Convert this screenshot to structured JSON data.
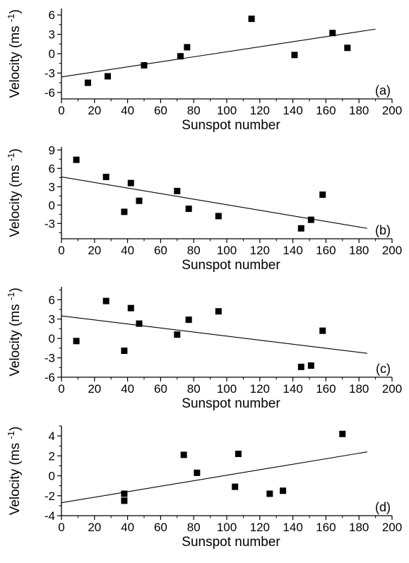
{
  "chart_data": [
    {
      "type": "scatter",
      "panel_label": "(a)",
      "xlabel": "Sunspot number",
      "ylabel": "Velocity (ms -1)",
      "xlim": [
        0,
        200
      ],
      "ylim": [
        -7,
        7
      ],
      "xticks": [
        "0",
        "20",
        "40",
        "60",
        "80",
        "100",
        "120",
        "140",
        "160",
        "180",
        "200"
      ],
      "yticks": [
        "-6",
        "-3",
        "0",
        "3",
        "6"
      ],
      "points": [
        {
          "x": 16,
          "y": -4.5
        },
        {
          "x": 28,
          "y": -3.5
        },
        {
          "x": 50,
          "y": -1.8
        },
        {
          "x": 72,
          "y": -0.4
        },
        {
          "x": 76,
          "y": 1.0
        },
        {
          "x": 115,
          "y": 5.4
        },
        {
          "x": 141,
          "y": -0.2
        },
        {
          "x": 164,
          "y": 3.2
        },
        {
          "x": 173,
          "y": 0.9
        }
      ],
      "fit": {
        "x": [
          0,
          190
        ],
        "y": [
          -3.6,
          3.8
        ]
      }
    },
    {
      "type": "scatter",
      "panel_label": "(b)",
      "xlabel": "Sunspot number",
      "ylabel": "Velocity (ms -1)",
      "xlim": [
        0,
        200
      ],
      "ylim": [
        -5.5,
        9.5
      ],
      "xticks": [
        "0",
        "20",
        "40",
        "60",
        "80",
        "100",
        "120",
        "140",
        "160",
        "180",
        "200"
      ],
      "yticks": [
        "-3",
        "0",
        "3",
        "6",
        "9"
      ],
      "points": [
        {
          "x": 9,
          "y": 7.4
        },
        {
          "x": 27,
          "y": 4.6
        },
        {
          "x": 38,
          "y": -1.1
        },
        {
          "x": 42,
          "y": 3.6
        },
        {
          "x": 47,
          "y": 0.7
        },
        {
          "x": 70,
          "y": 2.3
        },
        {
          "x": 77,
          "y": -0.6
        },
        {
          "x": 95,
          "y": -1.8
        },
        {
          "x": 145,
          "y": -3.8
        },
        {
          "x": 151,
          "y": -2.4
        },
        {
          "x": 158,
          "y": 1.7
        }
      ],
      "fit": {
        "x": [
          0,
          185
        ],
        "y": [
          4.6,
          -3.8
        ]
      }
    },
    {
      "type": "scatter",
      "panel_label": "(c)",
      "xlabel": "Sunspot number",
      "ylabel": "Velocity (ms -1)",
      "xlim": [
        0,
        200
      ],
      "ylim": [
        -6,
        8
      ],
      "xticks": [
        "0",
        "20",
        "40",
        "60",
        "80",
        "100",
        "120",
        "140",
        "160",
        "180",
        "200"
      ],
      "yticks": [
        "-6",
        "-3",
        "0",
        "3",
        "6"
      ],
      "points": [
        {
          "x": 9,
          "y": -0.4
        },
        {
          "x": 27,
          "y": 5.8
        },
        {
          "x": 38,
          "y": -1.9
        },
        {
          "x": 42,
          "y": 4.7
        },
        {
          "x": 47,
          "y": 2.3
        },
        {
          "x": 70,
          "y": 0.6
        },
        {
          "x": 77,
          "y": 2.9
        },
        {
          "x": 95,
          "y": 4.2
        },
        {
          "x": 145,
          "y": -4.4
        },
        {
          "x": 151,
          "y": -4.2
        },
        {
          "x": 158,
          "y": 1.2
        }
      ],
      "fit": {
        "x": [
          0,
          185
        ],
        "y": [
          3.5,
          -2.3
        ]
      }
    },
    {
      "type": "scatter",
      "panel_label": "(d)",
      "xlabel": "Sunspot number",
      "ylabel": "Velocity (ms -1)",
      "xlim": [
        0,
        200
      ],
      "ylim": [
        -4,
        5
      ],
      "xticks": [
        "0",
        "20",
        "40",
        "60",
        "80",
        "100",
        "120",
        "140",
        "160",
        "180",
        "200"
      ],
      "yticks": [
        "-4",
        "-2",
        "0",
        "2",
        "4"
      ],
      "points": [
        {
          "x": 38,
          "y": -1.8
        },
        {
          "x": 38,
          "y": -2.5
        },
        {
          "x": 74,
          "y": 2.1
        },
        {
          "x": 82,
          "y": 0.3
        },
        {
          "x": 105,
          "y": -1.1
        },
        {
          "x": 107,
          "y": 2.2
        },
        {
          "x": 126,
          "y": -1.8
        },
        {
          "x": 134,
          "y": -1.5
        },
        {
          "x": 170,
          "y": 4.2
        }
      ],
      "fit": {
        "x": [
          0,
          185
        ],
        "y": [
          -2.7,
          2.4
        ]
      }
    }
  ]
}
